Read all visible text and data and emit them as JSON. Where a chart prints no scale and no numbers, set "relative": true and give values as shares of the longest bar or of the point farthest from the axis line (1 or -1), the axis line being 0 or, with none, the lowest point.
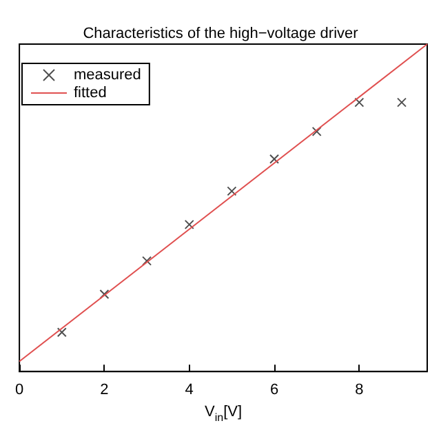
{
  "chart_data": {
    "type": "scatter",
    "title": "Characteristics of the high−voltage driver",
    "xlabel": "V$_{in}$[V]",
    "relative": true,
    "xlim": [
      0,
      9.6
    ],
    "xticks": [
      0,
      2,
      4,
      6,
      8
    ],
    "grid": false,
    "legend": "top left",
    "series": [
      {
        "name": "measured",
        "type": "scatter",
        "marker": "cross",
        "color": "#222222",
        "x": [
          1,
          2,
          3,
          4,
          5,
          6,
          7,
          8,
          9
        ],
        "values": [
          0.12,
          0.236,
          0.338,
          0.449,
          0.551,
          0.649,
          0.733,
          0.822,
          0.822
        ]
      },
      {
        "name": "fitted",
        "type": "line",
        "marker": "none",
        "line_style": "solid",
        "color": "#e05050",
        "x": [
          0,
          9.6
        ],
        "values": [
          0.031,
          1.0
        ]
      }
    ]
  }
}
